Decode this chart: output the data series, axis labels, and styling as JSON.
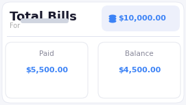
{
  "outer_bg": "#f5f6fa",
  "card_bg": "#ffffff",
  "title": "Total Bills",
  "subtitle_label": "For",
  "subtitle_bar_color": "#d0d5e0",
  "total_label": "$10,000.00",
  "total_bg": "#edf0fb",
  "total_text_color": "#3b82f6",
  "icon_color": "#3b82f6",
  "divider_color": "#e0e3ee",
  "paid_label": "Paid",
  "paid_value": "$5,500.00",
  "balance_label": "Balance",
  "balance_value": "$4,500.00",
  "value_color": "#3b82f6",
  "label_color": "#888899",
  "title_color": "#1a1a2e",
  "card2_bg": "#ffffff",
  "card2_edge": "#e8eaf0"
}
